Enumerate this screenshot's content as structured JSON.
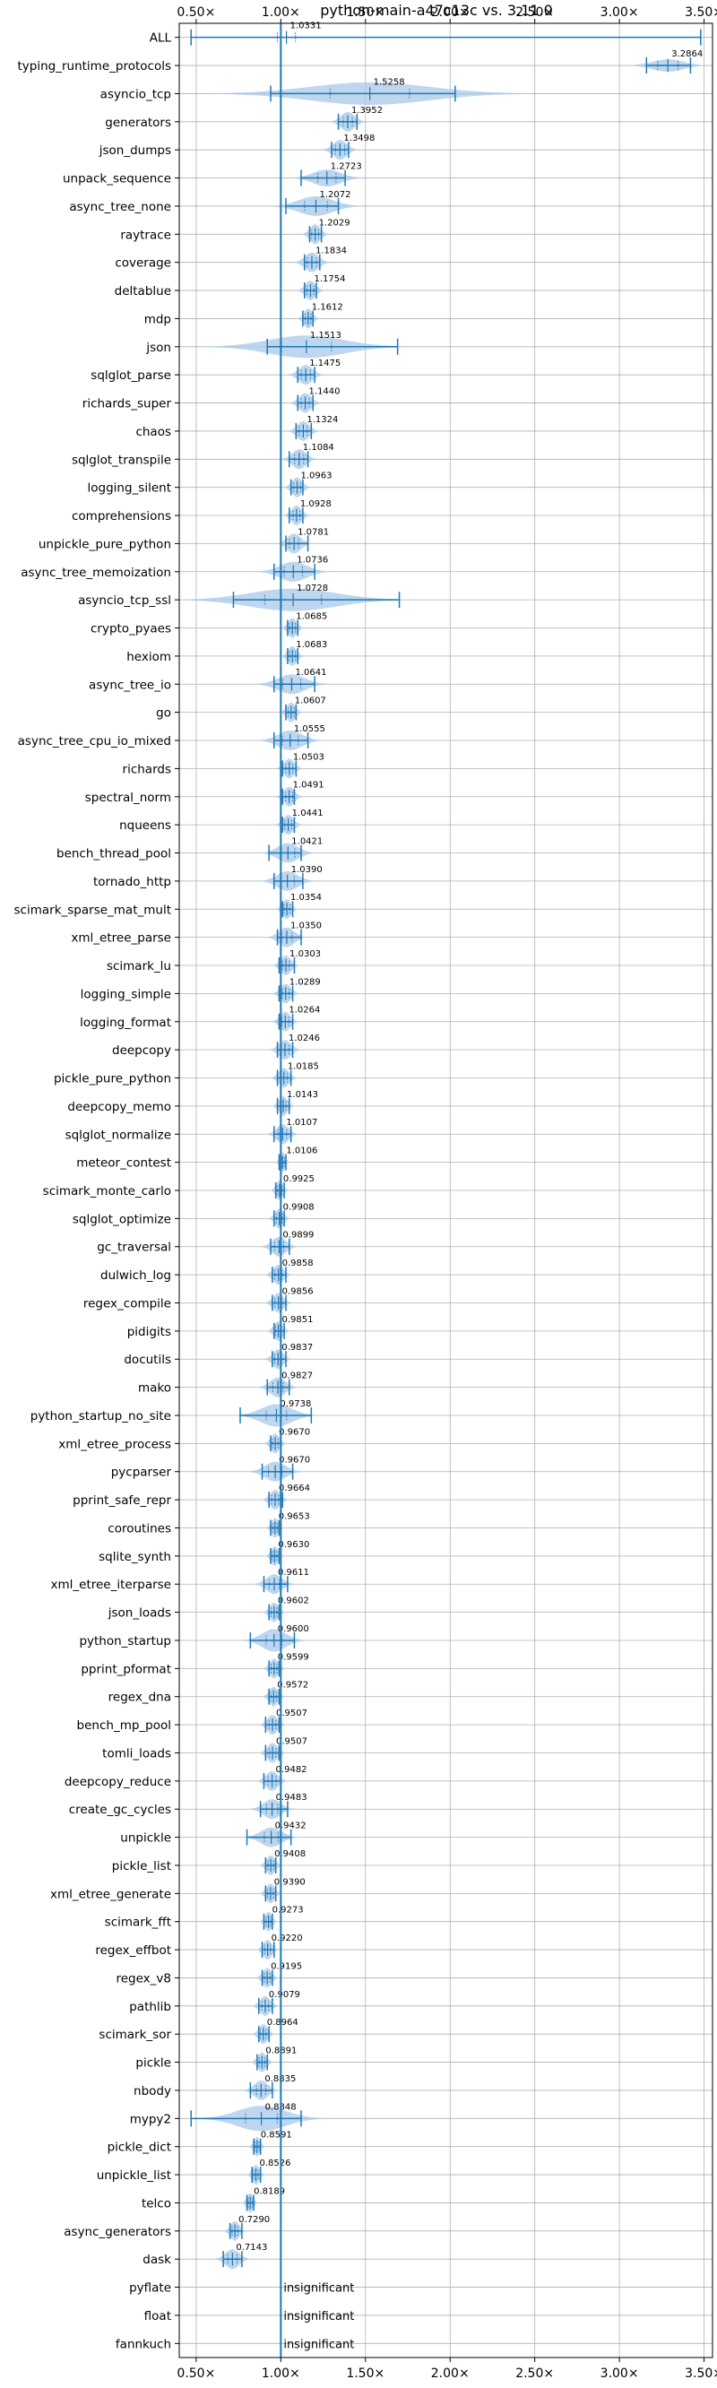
{
  "chart_data": {
    "type": "violin",
    "title": "python-main-a47c13c vs. 3.11.0",
    "xlim": [
      0.4,
      3.55
    ],
    "x_ticks": [
      0.5,
      1.0,
      1.5,
      2.0,
      2.5,
      3.0,
      3.5
    ],
    "x_tick_labels": [
      "0.50×",
      "1.00×",
      "1.50×",
      "2.00×",
      "2.50×",
      "3.00×",
      "3.50×"
    ],
    "reference_line": 1.0,
    "grid": true,
    "colors": {
      "violin": "#a8c8e8",
      "line": "#1f77b4"
    },
    "insignificant_label": "insignificant",
    "benchmarks": [
      {
        "name": "ALL",
        "value": 1.0331,
        "label": "1.0331",
        "min": 0.47,
        "max": 3.48,
        "half_width": 0.015,
        "spread": 0.08
      },
      {
        "name": "typing_runtime_protocols",
        "value": 3.2864,
        "label": "3.2864",
        "min": 3.16,
        "max": 3.42,
        "half_width": 0.22,
        "spread": 0.09
      },
      {
        "name": "asyncio_tcp",
        "value": 1.5258,
        "label": "1.5258",
        "min": 0.94,
        "max": 2.03,
        "half_width": 0.4,
        "spread": 0.35
      },
      {
        "name": "generators",
        "value": 1.3952,
        "label": "1.3952",
        "min": 1.34,
        "max": 1.45,
        "half_width": 0.35,
        "spread": 0.04
      },
      {
        "name": "json_dumps",
        "value": 1.3498,
        "label": "1.3498",
        "min": 1.3,
        "max": 1.4,
        "half_width": 0.35,
        "spread": 0.04
      },
      {
        "name": "unpack_sequence",
        "value": 1.2723,
        "label": "1.2723",
        "min": 1.12,
        "max": 1.38,
        "half_width": 0.3,
        "spread": 0.08
      },
      {
        "name": "async_tree_none",
        "value": 1.2072,
        "label": "1.2072",
        "min": 1.03,
        "max": 1.34,
        "half_width": 0.35,
        "spread": 0.1
      },
      {
        "name": "raytrace",
        "value": 1.2029,
        "label": "1.2029",
        "min": 1.17,
        "max": 1.24,
        "half_width": 0.35,
        "spread": 0.03
      },
      {
        "name": "coverage",
        "value": 1.1834,
        "label": "1.1834",
        "min": 1.14,
        "max": 1.23,
        "half_width": 0.35,
        "spread": 0.04
      },
      {
        "name": "deltablue",
        "value": 1.1754,
        "label": "1.1754",
        "min": 1.14,
        "max": 1.21,
        "half_width": 0.35,
        "spread": 0.03
      },
      {
        "name": "mdp",
        "value": 1.1612,
        "label": "1.1612",
        "min": 1.13,
        "max": 1.19,
        "half_width": 0.35,
        "spread": 0.025
      },
      {
        "name": "json",
        "value": 1.1513,
        "label": "1.1513",
        "min": 0.92,
        "max": 1.69,
        "half_width": 0.4,
        "spread": 0.22
      },
      {
        "name": "sqlglot_parse",
        "value": 1.1475,
        "label": "1.1475",
        "min": 1.1,
        "max": 1.2,
        "half_width": 0.35,
        "spread": 0.04
      },
      {
        "name": "richards_super",
        "value": 1.144,
        "label": "1.1440",
        "min": 1.1,
        "max": 1.19,
        "half_width": 0.35,
        "spread": 0.035
      },
      {
        "name": "chaos",
        "value": 1.1324,
        "label": "1.1324",
        "min": 1.09,
        "max": 1.18,
        "half_width": 0.35,
        "spread": 0.035
      },
      {
        "name": "sqlglot_transpile",
        "value": 1.1084,
        "label": "1.1084",
        "min": 1.05,
        "max": 1.16,
        "half_width": 0.35,
        "spread": 0.04
      },
      {
        "name": "logging_silent",
        "value": 1.0963,
        "label": "1.0963",
        "min": 1.06,
        "max": 1.13,
        "half_width": 0.35,
        "spread": 0.03
      },
      {
        "name": "comprehensions",
        "value": 1.0928,
        "label": "1.0928",
        "min": 1.05,
        "max": 1.13,
        "half_width": 0.35,
        "spread": 0.03
      },
      {
        "name": "unpickle_pure_python",
        "value": 1.0781,
        "label": "1.0781",
        "min": 1.03,
        "max": 1.16,
        "half_width": 0.35,
        "spread": 0.04
      },
      {
        "name": "async_tree_memoization",
        "value": 1.0736,
        "label": "1.0736",
        "min": 0.96,
        "max": 1.2,
        "half_width": 0.35,
        "spread": 0.08
      },
      {
        "name": "asyncio_tcp_ssl",
        "value": 1.0728,
        "label": "1.0728",
        "min": 0.72,
        "max": 1.7,
        "half_width": 0.4,
        "spread": 0.25
      },
      {
        "name": "crypto_pyaes",
        "value": 1.0685,
        "label": "1.0685",
        "min": 1.04,
        "max": 1.1,
        "half_width": 0.35,
        "spread": 0.025
      },
      {
        "name": "hexiom",
        "value": 1.0683,
        "label": "1.0683",
        "min": 1.04,
        "max": 1.1,
        "half_width": 0.35,
        "spread": 0.025
      },
      {
        "name": "async_tree_io",
        "value": 1.0641,
        "label": "1.0641",
        "min": 0.96,
        "max": 1.2,
        "half_width": 0.35,
        "spread": 0.08
      },
      {
        "name": "go",
        "value": 1.0607,
        "label": "1.0607",
        "min": 1.03,
        "max": 1.09,
        "half_width": 0.35,
        "spread": 0.025
      },
      {
        "name": "async_tree_cpu_io_mixed",
        "value": 1.0555,
        "label": "1.0555",
        "min": 0.96,
        "max": 1.16,
        "half_width": 0.35,
        "spread": 0.07
      },
      {
        "name": "richards",
        "value": 1.0503,
        "label": "1.0503",
        "min": 1.01,
        "max": 1.09,
        "half_width": 0.35,
        "spread": 0.03
      },
      {
        "name": "spectral_norm",
        "value": 1.0491,
        "label": "1.0491",
        "min": 1.01,
        "max": 1.08,
        "half_width": 0.35,
        "spread": 0.03
      },
      {
        "name": "nqueens",
        "value": 1.0441,
        "label": "1.0441",
        "min": 1.01,
        "max": 1.08,
        "half_width": 0.35,
        "spread": 0.03
      },
      {
        "name": "bench_thread_pool",
        "value": 1.0421,
        "label": "1.0421",
        "min": 0.93,
        "max": 1.12,
        "half_width": 0.35,
        "spread": 0.06
      },
      {
        "name": "tornado_http",
        "value": 1.039,
        "label": "1.0390",
        "min": 0.96,
        "max": 1.13,
        "half_width": 0.35,
        "spread": 0.06
      },
      {
        "name": "scimark_sparse_mat_mult",
        "value": 1.0354,
        "label": "1.0354",
        "min": 1.01,
        "max": 1.07,
        "half_width": 0.35,
        "spread": 0.025
      },
      {
        "name": "xml_etree_parse",
        "value": 1.035,
        "label": "1.0350",
        "min": 0.98,
        "max": 1.12,
        "half_width": 0.35,
        "spread": 0.045
      },
      {
        "name": "scimark_lu",
        "value": 1.0303,
        "label": "1.0303",
        "min": 0.99,
        "max": 1.08,
        "half_width": 0.35,
        "spread": 0.03
      },
      {
        "name": "logging_simple",
        "value": 1.0289,
        "label": "1.0289",
        "min": 0.99,
        "max": 1.07,
        "half_width": 0.35,
        "spread": 0.03
      },
      {
        "name": "logging_format",
        "value": 1.0264,
        "label": "1.0264",
        "min": 0.99,
        "max": 1.07,
        "half_width": 0.35,
        "spread": 0.03
      },
      {
        "name": "deepcopy",
        "value": 1.0246,
        "label": "1.0246",
        "min": 0.98,
        "max": 1.07,
        "half_width": 0.35,
        "spread": 0.035
      },
      {
        "name": "pickle_pure_python",
        "value": 1.0185,
        "label": "1.0185",
        "min": 0.98,
        "max": 1.06,
        "half_width": 0.35,
        "spread": 0.03
      },
      {
        "name": "deepcopy_memo",
        "value": 1.0143,
        "label": "1.0143",
        "min": 0.98,
        "max": 1.05,
        "half_width": 0.35,
        "spread": 0.025
      },
      {
        "name": "sqlglot_normalize",
        "value": 1.0107,
        "label": "1.0107",
        "min": 0.96,
        "max": 1.06,
        "half_width": 0.35,
        "spread": 0.035
      },
      {
        "name": "meteor_contest",
        "value": 1.0106,
        "label": "1.0106",
        "min": 0.99,
        "max": 1.03,
        "half_width": 0.35,
        "spread": 0.015
      },
      {
        "name": "scimark_monte_carlo",
        "value": 0.9925,
        "label": "0.9925",
        "min": 0.97,
        "max": 1.02,
        "half_width": 0.35,
        "spread": 0.02
      },
      {
        "name": "sqlglot_optimize",
        "value": 0.9908,
        "label": "0.9908",
        "min": 0.96,
        "max": 1.02,
        "half_width": 0.35,
        "spread": 0.025
      },
      {
        "name": "gc_traversal",
        "value": 0.9899,
        "label": "0.9899",
        "min": 0.94,
        "max": 1.05,
        "half_width": 0.35,
        "spread": 0.04
      },
      {
        "name": "dulwich_log",
        "value": 0.9858,
        "label": "0.9858",
        "min": 0.95,
        "max": 1.03,
        "half_width": 0.35,
        "spread": 0.03
      },
      {
        "name": "regex_compile",
        "value": 0.9856,
        "label": "0.9856",
        "min": 0.95,
        "max": 1.03,
        "half_width": 0.35,
        "spread": 0.03
      },
      {
        "name": "pidigits",
        "value": 0.9851,
        "label": "0.9851",
        "min": 0.96,
        "max": 1.02,
        "half_width": 0.35,
        "spread": 0.025
      },
      {
        "name": "docutils",
        "value": 0.9837,
        "label": "0.9837",
        "min": 0.95,
        "max": 1.03,
        "half_width": 0.35,
        "spread": 0.03
      },
      {
        "name": "mako",
        "value": 0.9827,
        "label": "0.9827",
        "min": 0.92,
        "max": 1.05,
        "half_width": 0.35,
        "spread": 0.045
      },
      {
        "name": "python_startup_no_site",
        "value": 0.9738,
        "label": "0.9738",
        "min": 0.76,
        "max": 1.18,
        "half_width": 0.4,
        "spread": 0.09
      },
      {
        "name": "xml_etree_process",
        "value": 0.967,
        "label": "0.9670",
        "min": 0.94,
        "max": 1.0,
        "half_width": 0.35,
        "spread": 0.025
      },
      {
        "name": "pycparser",
        "value": 0.967,
        "label": "0.9670",
        "min": 0.89,
        "max": 1.07,
        "half_width": 0.35,
        "spread": 0.06
      },
      {
        "name": "pprint_safe_repr",
        "value": 0.9664,
        "label": "0.9664",
        "min": 0.93,
        "max": 1.01,
        "half_width": 0.35,
        "spread": 0.03
      },
      {
        "name": "coroutines",
        "value": 0.9653,
        "label": "0.9653",
        "min": 0.94,
        "max": 0.99,
        "half_width": 0.35,
        "spread": 0.02
      },
      {
        "name": "sqlite_synth",
        "value": 0.963,
        "label": "0.9630",
        "min": 0.94,
        "max": 0.99,
        "half_width": 0.35,
        "spread": 0.02
      },
      {
        "name": "xml_etree_iterparse",
        "value": 0.9611,
        "label": "0.9611",
        "min": 0.9,
        "max": 1.04,
        "half_width": 0.35,
        "spread": 0.045
      },
      {
        "name": "json_loads",
        "value": 0.9602,
        "label": "0.9602",
        "min": 0.93,
        "max": 0.99,
        "half_width": 0.35,
        "spread": 0.025
      },
      {
        "name": "python_startup",
        "value": 0.96,
        "label": "0.9600",
        "min": 0.82,
        "max": 1.08,
        "half_width": 0.4,
        "spread": 0.07
      },
      {
        "name": "pprint_pformat",
        "value": 0.9599,
        "label": "0.9599",
        "min": 0.93,
        "max": 0.99,
        "half_width": 0.35,
        "spread": 0.025
      },
      {
        "name": "regex_dna",
        "value": 0.9572,
        "label": "0.9572",
        "min": 0.93,
        "max": 0.99,
        "half_width": 0.35,
        "spread": 0.025
      },
      {
        "name": "bench_mp_pool",
        "value": 0.9507,
        "label": "0.9507",
        "min": 0.91,
        "max": 0.99,
        "half_width": 0.35,
        "spread": 0.03
      },
      {
        "name": "tomli_loads",
        "value": 0.9507,
        "label": "0.9507",
        "min": 0.91,
        "max": 0.99,
        "half_width": 0.35,
        "spread": 0.03
      },
      {
        "name": "deepcopy_reduce",
        "value": 0.9482,
        "label": "0.9482",
        "min": 0.9,
        "max": 1.0,
        "half_width": 0.35,
        "spread": 0.035
      },
      {
        "name": "create_gc_cycles",
        "value": 0.9483,
        "label": "0.9483",
        "min": 0.88,
        "max": 1.04,
        "half_width": 0.35,
        "spread": 0.05
      },
      {
        "name": "unpickle",
        "value": 0.9432,
        "label": "0.9432",
        "min": 0.8,
        "max": 1.06,
        "half_width": 0.35,
        "spread": 0.06
      },
      {
        "name": "pickle_list",
        "value": 0.9408,
        "label": "0.9408",
        "min": 0.91,
        "max": 0.97,
        "half_width": 0.35,
        "spread": 0.025
      },
      {
        "name": "xml_etree_generate",
        "value": 0.939,
        "label": "0.9390",
        "min": 0.91,
        "max": 0.97,
        "half_width": 0.35,
        "spread": 0.025
      },
      {
        "name": "scimark_fft",
        "value": 0.9273,
        "label": "0.9273",
        "min": 0.9,
        "max": 0.95,
        "half_width": 0.35,
        "spread": 0.02
      },
      {
        "name": "regex_effbot",
        "value": 0.922,
        "label": "0.9220",
        "min": 0.89,
        "max": 0.96,
        "half_width": 0.35,
        "spread": 0.025
      },
      {
        "name": "regex_v8",
        "value": 0.9195,
        "label": "0.9195",
        "min": 0.89,
        "max": 0.95,
        "half_width": 0.35,
        "spread": 0.025
      },
      {
        "name": "pathlib",
        "value": 0.9079,
        "label": "0.9079",
        "min": 0.87,
        "max": 0.95,
        "half_width": 0.35,
        "spread": 0.03
      },
      {
        "name": "scimark_sor",
        "value": 0.8964,
        "label": "0.8964",
        "min": 0.87,
        "max": 0.93,
        "half_width": 0.35,
        "spread": 0.025
      },
      {
        "name": "pickle",
        "value": 0.8891,
        "label": "0.8891",
        "min": 0.86,
        "max": 0.92,
        "half_width": 0.35,
        "spread": 0.025
      },
      {
        "name": "nbody",
        "value": 0.8835,
        "label": "0.8835",
        "min": 0.82,
        "max": 0.95,
        "half_width": 0.35,
        "spread": 0.04
      },
      {
        "name": "mypy2",
        "value": 0.8848,
        "label": "0.8848",
        "min": 0.47,
        "max": 1.12,
        "half_width": 0.45,
        "spread": 0.14
      },
      {
        "name": "pickle_dict",
        "value": 0.8591,
        "label": "0.8591",
        "min": 0.84,
        "max": 0.88,
        "half_width": 0.35,
        "spread": 0.018
      },
      {
        "name": "unpickle_list",
        "value": 0.8526,
        "label": "0.8526",
        "min": 0.83,
        "max": 0.88,
        "half_width": 0.35,
        "spread": 0.02
      },
      {
        "name": "telco",
        "value": 0.8189,
        "label": "0.8189",
        "min": 0.8,
        "max": 0.84,
        "half_width": 0.35,
        "spread": 0.018
      },
      {
        "name": "async_generators",
        "value": 0.729,
        "label": "0.7290",
        "min": 0.7,
        "max": 0.77,
        "half_width": 0.35,
        "spread": 0.025
      },
      {
        "name": "dask",
        "value": 0.7143,
        "label": "0.7143",
        "min": 0.66,
        "max": 0.77,
        "half_width": 0.35,
        "spread": 0.04
      },
      {
        "name": "pyflate",
        "insignificant": true
      },
      {
        "name": "float",
        "insignificant": true
      },
      {
        "name": "fannkuch",
        "insignificant": true
      }
    ]
  }
}
